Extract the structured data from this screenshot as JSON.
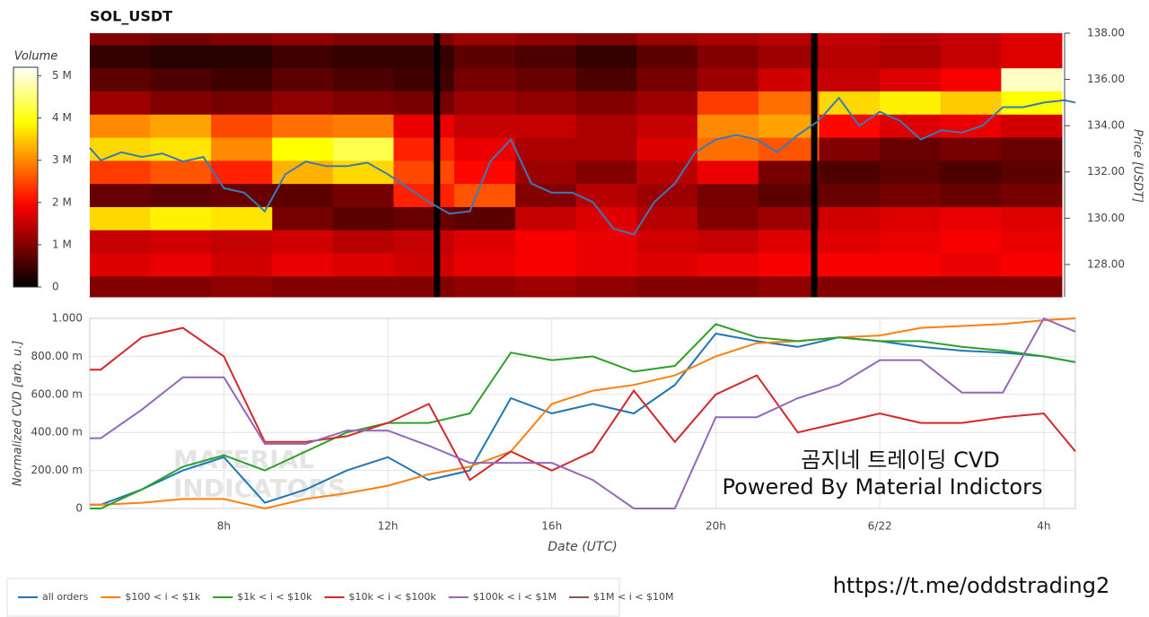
{
  "chart_data": [
    {
      "type": "heatmap",
      "title": "SOL_USDT",
      "colormap": "hot",
      "xlim": [
        4.73,
        28.77
      ],
      "x_edges": [
        4.73,
        6.21,
        7.69,
        9.18,
        10.66,
        12.14,
        13.62,
        15.11,
        16.59,
        18.07,
        19.55,
        21.04,
        22.52,
        24.0,
        25.48,
        26.96,
        28.44
      ],
      "y_edges": [
        126.6,
        127.5,
        128.5,
        129.5,
        130.5,
        131.5,
        132.5,
        133.5,
        134.5,
        135.5,
        136.5,
        137.5,
        138.0
      ],
      "z": [
        [
          1.0,
          1.0,
          1.1,
          1.0,
          1.0,
          1.0,
          1.1,
          1.2,
          1.1,
          1.0,
          1.0,
          1.1,
          1.0,
          1.0,
          1.0,
          1.0
        ],
        [
          1.7,
          1.8,
          1.6,
          1.8,
          1.7,
          1.6,
          1.8,
          1.9,
          1.8,
          1.7,
          1.8,
          1.9,
          1.9,
          1.9,
          1.8,
          1.9
        ],
        [
          1.5,
          1.6,
          1.5,
          1.6,
          1.4,
          1.5,
          1.7,
          1.9,
          1.8,
          1.6,
          1.5,
          1.7,
          1.7,
          1.8,
          1.9,
          1.8
        ],
        [
          3.6,
          3.8,
          3.7,
          0.9,
          0.7,
          0.8,
          0.7,
          1.5,
          1.7,
          1.4,
          1.0,
          1.2,
          1.6,
          1.7,
          1.8,
          1.7
        ],
        [
          0.8,
          0.7,
          0.8,
          0.7,
          0.9,
          2.2,
          2.6,
          1.0,
          1.4,
          1.2,
          0.9,
          0.7,
          0.8,
          0.9,
          0.8,
          0.9
        ],
        [
          2.4,
          2.6,
          2.2,
          3.3,
          3.6,
          2.5,
          2.0,
          1.2,
          1.0,
          1.4,
          1.8,
          0.9,
          0.6,
          0.7,
          0.6,
          0.7
        ],
        [
          3.6,
          3.7,
          3.0,
          3.9,
          4.3,
          2.2,
          1.8,
          1.3,
          1.3,
          1.7,
          2.8,
          2.6,
          1.0,
          0.8,
          0.9,
          0.8
        ],
        [
          3.0,
          3.2,
          2.5,
          2.8,
          2.9,
          1.8,
          1.5,
          1.5,
          1.3,
          1.5,
          3.0,
          3.2,
          2.0,
          1.7,
          1.8,
          1.6
        ],
        [
          1.2,
          1.0,
          0.9,
          1.1,
          1.0,
          0.9,
          1.2,
          1.1,
          1.0,
          1.2,
          2.4,
          2.8,
          3.6,
          3.8,
          3.5,
          3.9
        ],
        [
          0.7,
          0.6,
          0.5,
          0.7,
          0.6,
          0.5,
          0.9,
          0.8,
          0.6,
          0.9,
          1.2,
          1.6,
          1.5,
          1.7,
          1.9,
          4.9
        ],
        [
          0.4,
          0.3,
          0.3,
          0.5,
          0.4,
          0.4,
          0.7,
          0.6,
          0.4,
          0.7,
          1.0,
          1.2,
          1.4,
          1.3,
          1.5,
          1.7
        ],
        [
          1.0,
          0.9,
          1.0,
          1.1,
          1.0,
          1.0,
          1.2,
          1.1,
          1.0,
          1.2,
          1.3,
          1.4,
          1.5,
          1.4,
          1.5,
          1.7
        ]
      ],
      "gaps_x": [
        13.2,
        22.4
      ],
      "colorbar": {
        "label": "Volume",
        "zlim": [
          0,
          5.2
        ],
        "ticks": [
          0,
          {
            "value": 1,
            "label": "1 M"
          },
          {
            "value": 2,
            "label": "2 M"
          },
          {
            "value": 3,
            "label": "3 M"
          },
          {
            "value": 4,
            "label": "4 M"
          },
          {
            "value": 5,
            "label": "5 M"
          }
        ]
      },
      "price": {
        "color": "#3a7ab8",
        "x": [
          4.73,
          5,
          5.5,
          6,
          6.5,
          7,
          7.5,
          8,
          8.5,
          9,
          9.5,
          10,
          10.5,
          11,
          11.5,
          12,
          12.5,
          13,
          13.5,
          14,
          14.5,
          15,
          15.5,
          16,
          16.5,
          17,
          17.5,
          18,
          18.5,
          19,
          19.5,
          20,
          20.5,
          21,
          21.5,
          22,
          22.5,
          23,
          23.5,
          24,
          24.5,
          25,
          25.5,
          26,
          26.5,
          27,
          27.5,
          28,
          28.5,
          28.77
        ],
        "values": [
          133.04,
          132.5,
          132.85,
          132.65,
          132.8,
          132.45,
          132.65,
          131.3,
          131.1,
          130.3,
          131.9,
          132.45,
          132.25,
          132.25,
          132.4,
          131.9,
          131.3,
          130.7,
          130.2,
          130.3,
          132.45,
          133.4,
          131.5,
          131.1,
          131.1,
          130.7,
          129.55,
          129.3,
          130.7,
          131.5,
          132.85,
          133.4,
          133.6,
          133.4,
          132.85,
          133.6,
          134.2,
          135.2,
          134.0,
          134.6,
          134.2,
          133.4,
          133.8,
          133.7,
          134.0,
          134.8,
          134.8,
          135.0,
          135.1,
          135.0
        ]
      },
      "ylabel": "Price [USDT]",
      "ylim": [
        126.6,
        138.0
      ],
      "yticks": [
        {
          "value": 128,
          "label": "128.00"
        },
        {
          "value": 130,
          "label": "130.00"
        },
        {
          "value": 132,
          "label": "132.00"
        },
        {
          "value": 134,
          "label": "134.00"
        },
        {
          "value": 136,
          "label": "136.00"
        },
        {
          "value": 138,
          "label": "138.00"
        }
      ]
    },
    {
      "type": "line",
      "xlabel": "Date (UTC)",
      "ylabel": "Normalized CVD [arb. u.]",
      "grid": true,
      "xlim": [
        4.73,
        28.77
      ],
      "xticks": [
        {
          "value": 8,
          "label": "8h"
        },
        {
          "value": 12,
          "label": "12h"
        },
        {
          "value": 16,
          "label": "16h"
        },
        {
          "value": 20,
          "label": "20h"
        },
        {
          "value": 24,
          "label": "6/22"
        },
        {
          "value": 28,
          "label": "4h"
        }
      ],
      "ylim": [
        0,
        1
      ],
      "yticks": [
        0,
        {
          "value": 0.2,
          "label": "200.00 m"
        },
        {
          "value": 0.4,
          "label": "400.00 m"
        },
        {
          "value": 0.6,
          "label": "600.00 m"
        },
        {
          "value": 0.8,
          "label": "800.00 m"
        },
        {
          "value": 1,
          "label": "1.000"
        }
      ],
      "x": [
        4.73,
        5,
        6,
        7,
        8,
        9,
        10,
        11,
        12,
        13,
        14,
        15,
        16,
        17,
        18,
        19,
        20,
        21,
        22,
        23,
        24,
        25,
        26,
        27,
        28,
        28.77
      ],
      "series": [
        {
          "name": "all orders",
          "color": "#1f77b4",
          "values": [
            0.02,
            0.02,
            0.1,
            0.2,
            0.27,
            0.03,
            0.1,
            0.2,
            0.27,
            0.15,
            0.2,
            0.58,
            0.5,
            0.55,
            0.5,
            0.65,
            0.92,
            0.88,
            0.85,
            0.9,
            0.88,
            0.85,
            0.83,
            0.82,
            0.8,
            0.77
          ]
        },
        {
          "name": "$100 < i < $1k",
          "color": "#ff7f0e",
          "values": [
            0.02,
            0.02,
            0.03,
            0.05,
            0.05,
            0.0,
            0.05,
            0.08,
            0.12,
            0.18,
            0.22,
            0.3,
            0.55,
            0.62,
            0.65,
            0.7,
            0.8,
            0.87,
            0.88,
            0.9,
            0.91,
            0.95,
            0.96,
            0.97,
            0.99,
            1.0
          ]
        },
        {
          "name": "$1k < i < $10k",
          "color": "#2ca02c",
          "values": [
            0.0,
            0.0,
            0.1,
            0.22,
            0.28,
            0.2,
            0.3,
            0.4,
            0.45,
            0.45,
            0.5,
            0.82,
            0.78,
            0.8,
            0.72,
            0.75,
            0.97,
            0.9,
            0.88,
            0.9,
            0.88,
            0.88,
            0.85,
            0.83,
            0.8,
            0.77
          ]
        },
        {
          "name": "$10k < i < $100k",
          "color": "#d62728",
          "values": [
            0.73,
            0.73,
            0.9,
            0.95,
            0.8,
            0.35,
            0.35,
            0.38,
            0.45,
            0.55,
            0.15,
            0.3,
            0.2,
            0.3,
            0.62,
            0.35,
            0.6,
            0.7,
            0.4,
            0.45,
            0.5,
            0.45,
            0.45,
            0.48,
            0.5,
            0.3
          ]
        },
        {
          "name": "$100k < i < $1M",
          "color": "#9467bd",
          "values": [
            0.37,
            0.37,
            0.52,
            0.69,
            0.69,
            0.34,
            0.34,
            0.41,
            0.41,
            0.33,
            0.24,
            0.24,
            0.24,
            0.15,
            0.0,
            0.0,
            0.48,
            0.48,
            0.58,
            0.65,
            0.78,
            0.78,
            0.61,
            0.61,
            1.0,
            0.93
          ]
        },
        {
          "name": "$1M < i < $10M",
          "color": "#8c564b",
          "values": [
            null,
            null,
            null,
            null,
            null,
            null,
            null,
            null,
            null,
            null,
            null,
            null,
            null,
            null,
            null,
            null,
            null,
            null,
            null,
            null,
            null,
            null,
            null,
            null,
            null,
            null
          ]
        }
      ],
      "annotations": [
        "곰지네 트레이딩 CVD",
        "Powered By Material Indictors"
      ],
      "watermark": [
        "MATERIAL",
        "INDICATORS"
      ]
    }
  ],
  "footer_url": "https://t.me/oddstrading2"
}
